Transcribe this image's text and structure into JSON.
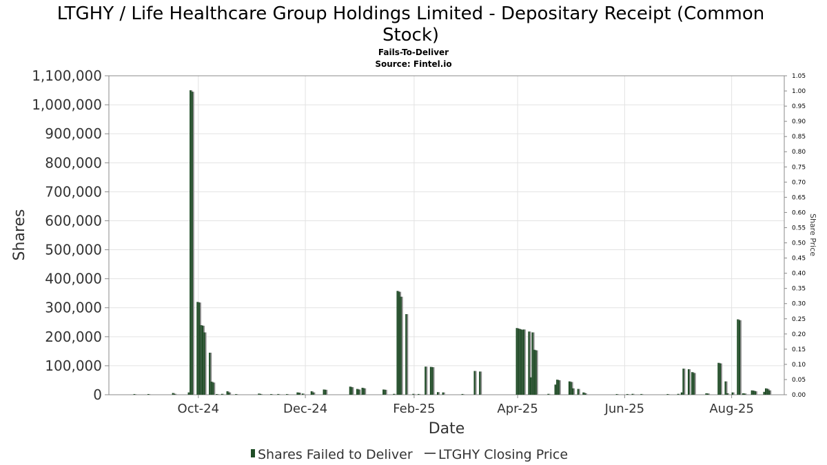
{
  "chart_data": {
    "type": "bar",
    "title": "LTGHY / Life Healthcare Group Holdings Limited - Depositary Receipt (Common Stock)",
    "title_line1": "LTGHY / Life Healthcare Group Holdings Limited - Depositary Receipt (Common",
    "title_line2": "Stock)",
    "subtitle": "Fails-To-Deliver",
    "source": "Source: Fintel.io",
    "xlabel": "Date",
    "ylabel": "Shares",
    "y2label": "Share Price",
    "ylim": [
      0,
      1100000
    ],
    "y2lim": [
      0,
      1.05
    ],
    "grid": true,
    "legend_position": "bottom-center",
    "yticks": [
      "0",
      "100,000",
      "200,000",
      "300,000",
      "400,000",
      "500,000",
      "600,000",
      "700,000",
      "800,000",
      "900,000",
      "1,000,000",
      "1,100,000"
    ],
    "y2ticks": [
      "0.00",
      "0.05",
      "0.10",
      "0.15",
      "0.20",
      "0.25",
      "0.30",
      "0.35",
      "0.40",
      "0.45",
      "0.50",
      "0.55",
      "0.60",
      "0.65",
      "0.70",
      "0.75",
      "0.80",
      "0.85",
      "0.90",
      "0.95",
      "1.00",
      "1.05"
    ],
    "xticks": [
      {
        "label": "Oct-24",
        "date": "2024-10-01"
      },
      {
        "label": "Dec-24",
        "date": "2024-12-01"
      },
      {
        "label": "Feb-25",
        "date": "2025-02-01"
      },
      {
        "label": "Apr-25",
        "date": "2025-04-01"
      },
      {
        "label": "Jun-25",
        "date": "2025-06-01"
      },
      {
        "label": "Aug-25",
        "date": "2025-08-01"
      }
    ],
    "xrange": [
      "2024-08-11",
      "2025-08-31"
    ],
    "series": [
      {
        "name": "Shares Failed to Deliver",
        "color": "#1f4d26",
        "points": [
          [
            "2024-08-25",
            1500
          ],
          [
            "2024-09-02",
            800
          ],
          [
            "2024-09-16",
            6000
          ],
          [
            "2024-09-17",
            3000
          ],
          [
            "2024-09-25",
            8000
          ],
          [
            "2024-09-26",
            1050000
          ],
          [
            "2024-09-27",
            1045000
          ],
          [
            "2024-09-30",
            320000
          ],
          [
            "2024-10-01",
            318000
          ],
          [
            "2024-10-02",
            240000
          ],
          [
            "2024-10-03",
            238000
          ],
          [
            "2024-10-04",
            215000
          ],
          [
            "2024-10-07",
            145000
          ],
          [
            "2024-10-08",
            45000
          ],
          [
            "2024-10-09",
            42000
          ],
          [
            "2024-10-11",
            2000
          ],
          [
            "2024-10-14",
            3000
          ],
          [
            "2024-10-17",
            12000
          ],
          [
            "2024-10-18",
            8000
          ],
          [
            "2024-10-22",
            2000
          ],
          [
            "2024-11-04",
            4000
          ],
          [
            "2024-11-05",
            2500
          ],
          [
            "2024-11-11",
            2000
          ],
          [
            "2024-11-15",
            2500
          ],
          [
            "2024-11-20",
            2000
          ],
          [
            "2024-11-26",
            8000
          ],
          [
            "2024-11-27",
            7000
          ],
          [
            "2024-11-29",
            4000
          ],
          [
            "2024-12-04",
            12000
          ],
          [
            "2024-12-05",
            8000
          ],
          [
            "2024-12-11",
            18000
          ],
          [
            "2024-12-12",
            17000
          ],
          [
            "2024-12-26",
            28000
          ],
          [
            "2024-12-27",
            26000
          ],
          [
            "2024-12-30",
            20000
          ],
          [
            "2024-12-31",
            18000
          ],
          [
            "2025-01-02",
            24000
          ],
          [
            "2025-01-03",
            22000
          ],
          [
            "2025-01-14",
            18000
          ],
          [
            "2025-01-15",
            17000
          ],
          [
            "2025-01-20",
            3000
          ],
          [
            "2025-01-22",
            358000
          ],
          [
            "2025-01-23",
            355000
          ],
          [
            "2025-01-24",
            338000
          ],
          [
            "2025-01-27",
            278000
          ],
          [
            "2025-01-31",
            3000
          ],
          [
            "2025-02-03",
            2500
          ],
          [
            "2025-02-07",
            97000
          ],
          [
            "2025-02-10",
            96000
          ],
          [
            "2025-02-11",
            95000
          ],
          [
            "2025-02-14",
            9000
          ],
          [
            "2025-02-17",
            8000
          ],
          [
            "2025-02-28",
            2500
          ],
          [
            "2025-03-07",
            82000
          ],
          [
            "2025-03-10",
            80000
          ],
          [
            "2025-03-31",
            230000
          ],
          [
            "2025-04-01",
            228000
          ],
          [
            "2025-04-02",
            226000
          ],
          [
            "2025-04-03",
            224000
          ],
          [
            "2025-04-04",
            225000
          ],
          [
            "2025-04-07",
            218000
          ],
          [
            "2025-04-08",
            60000
          ],
          [
            "2025-04-09",
            215000
          ],
          [
            "2025-04-10",
            155000
          ],
          [
            "2025-04-11",
            153000
          ],
          [
            "2025-04-18",
            3000
          ],
          [
            "2025-04-22",
            35000
          ],
          [
            "2025-04-23",
            52000
          ],
          [
            "2025-04-24",
            50000
          ],
          [
            "2025-04-30",
            46000
          ],
          [
            "2025-05-01",
            44000
          ],
          [
            "2025-05-02",
            22000
          ],
          [
            "2025-05-05",
            20000
          ],
          [
            "2025-05-08",
            8000
          ],
          [
            "2025-05-09",
            5000
          ],
          [
            "2025-05-27",
            2000
          ],
          [
            "2025-06-02",
            2000
          ],
          [
            "2025-06-05",
            3000
          ],
          [
            "2025-06-10",
            2500
          ],
          [
            "2025-06-25",
            2000
          ],
          [
            "2025-07-01",
            3000
          ],
          [
            "2025-07-03",
            8000
          ],
          [
            "2025-07-04",
            90000
          ],
          [
            "2025-07-07",
            88000
          ],
          [
            "2025-07-09",
            78000
          ],
          [
            "2025-07-10",
            75000
          ],
          [
            "2025-07-17",
            5000
          ],
          [
            "2025-07-18",
            4000
          ],
          [
            "2025-07-24",
            110000
          ],
          [
            "2025-07-25",
            108000
          ],
          [
            "2025-07-28",
            46000
          ],
          [
            "2025-07-29",
            5000
          ],
          [
            "2025-08-01",
            8000
          ],
          [
            "2025-08-04",
            260000
          ],
          [
            "2025-08-05",
            257000
          ],
          [
            "2025-08-07",
            5000
          ],
          [
            "2025-08-08",
            4000
          ],
          [
            "2025-08-12",
            15000
          ],
          [
            "2025-08-13",
            14000
          ],
          [
            "2025-08-14",
            12000
          ],
          [
            "2025-08-19",
            10000
          ],
          [
            "2025-08-20",
            22000
          ],
          [
            "2025-08-21",
            20000
          ],
          [
            "2025-08-22",
            15000
          ]
        ]
      },
      {
        "name": "LTGHY Closing Price",
        "color": "#555555",
        "points": []
      }
    ]
  },
  "colors": {
    "bar_dark": "#1f4d26",
    "bar_shadow": "#8a8a8a",
    "grid": "#e2e2e2",
    "axis": "#888888"
  }
}
